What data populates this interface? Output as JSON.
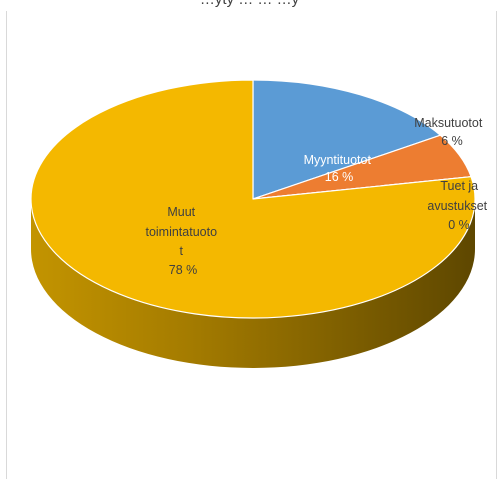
{
  "clipped_title": "…yty … … …y",
  "chart_data": {
    "type": "pie",
    "style": "3d",
    "slices": [
      {
        "label": "Myyntituotot",
        "value": 16,
        "value_label": "16 %",
        "color": "#5b9bd5"
      },
      {
        "label": "Maksutuotot",
        "value": 6,
        "value_label": "6 %",
        "color": "#ed7d31"
      },
      {
        "label": "Tuet ja avustukset",
        "value": 0,
        "value_label": "0 %",
        "color": "#a5a5a5"
      },
      {
        "label": "Muut toimintatuotot",
        "value": 78,
        "value_label": "78 %",
        "color": "#f4b800"
      }
    ],
    "legend": "none",
    "data_labels": true
  }
}
